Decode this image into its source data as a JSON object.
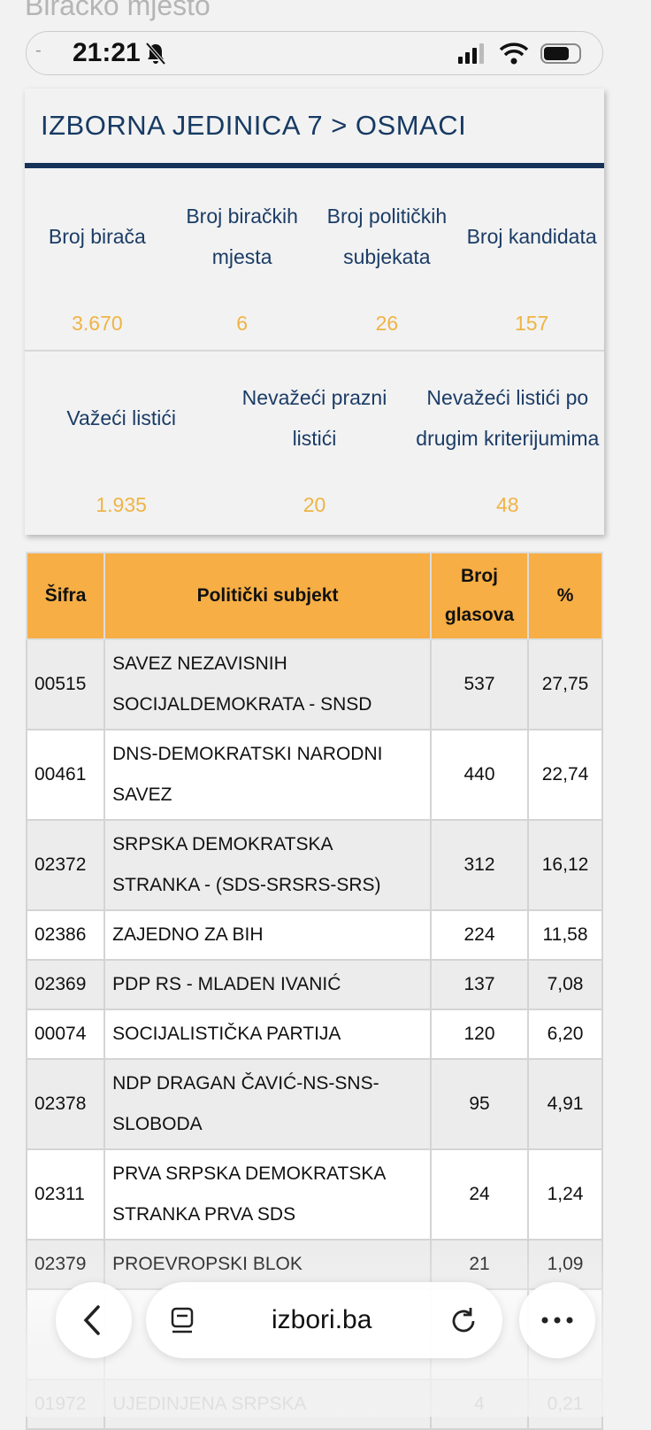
{
  "page_title": "Biračko mjesto",
  "status_bar": {
    "time": "21:21"
  },
  "card": {
    "title": "IZBORNA JEDINICA 7 > OSMACI",
    "stats": [
      [
        {
          "label": "Broj birača",
          "value": "3.670"
        },
        {
          "label": "Broj biračkih mjesta",
          "value": "6"
        },
        {
          "label": "Broj političkih subjekata",
          "value": "26"
        },
        {
          "label": "Broj kandidata",
          "value": "157"
        }
      ],
      [
        {
          "label": "Važeći listići",
          "value": "1.935"
        },
        {
          "label": "Nevažeći prazni listići",
          "value": "20"
        },
        {
          "label": "Nevažeći listići po drugim kriterijumima",
          "value": "48"
        }
      ]
    ]
  },
  "table": {
    "headers": [
      "Šifra",
      "Politički subjekt",
      "Broj glasova",
      "%"
    ],
    "rows": [
      [
        "00515",
        "SAVEZ NEZAVISNIH SOCIJALDEMOKRATA - SNSD",
        "537",
        "27,75"
      ],
      [
        "00461",
        "DNS-DEMOKRATSKI NARODNI SAVEZ",
        "440",
        "22,74"
      ],
      [
        "02372",
        "SRPSKA DEMOKRATSKA STRANKA - (SDS-SRSRS-SRS)",
        "312",
        "16,12"
      ],
      [
        "02386",
        "ZAJEDNO ZA BIH",
        "224",
        "11,58"
      ],
      [
        "02369",
        "PDP RS - MLADEN IVANIĆ",
        "137",
        "7,08"
      ],
      [
        "00074",
        "SOCIJALISTIČKA PARTIJA",
        "120",
        "6,20"
      ],
      [
        "02378",
        "NDP DRAGAN ČAVIĆ-NS-SNS-SLOBODA",
        "95",
        "4,91"
      ],
      [
        "02311",
        "PRVA SRPSKA DEMOKRATSKA STRANKA PRVA SDS",
        "24",
        "1,24"
      ],
      [
        "02379",
        "PROEVROPSKI BLOK",
        "21",
        "1,09"
      ]
    ],
    "last_row": [
      "01972",
      "UJEDINJENA SRPSKA",
      "4",
      "0,21"
    ]
  },
  "browser": {
    "url": "izbori.ba"
  }
}
